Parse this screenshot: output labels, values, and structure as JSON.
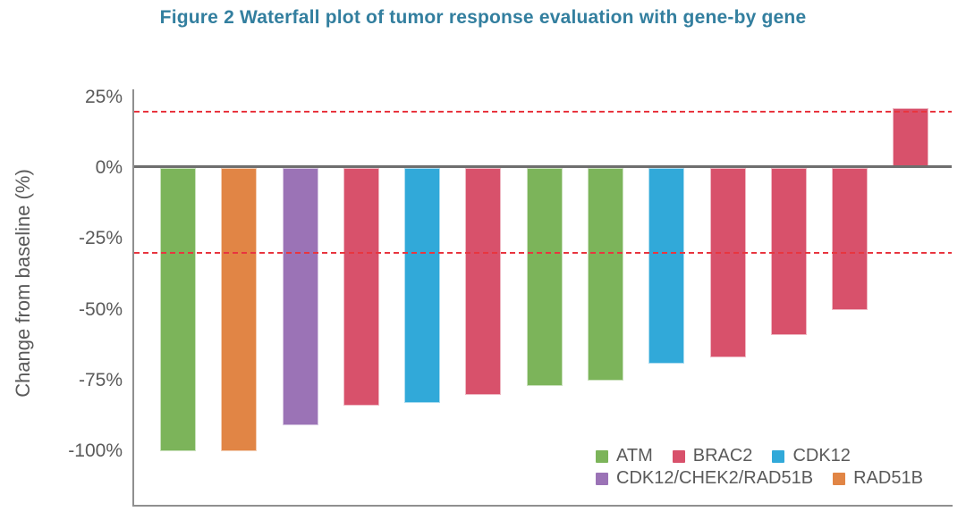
{
  "title": "Figure 2 Waterfall plot of tumor response evaluation with gene-by gene",
  "chart_data": {
    "type": "bar",
    "title": "Figure 2 Waterfall plot of tumor response evaluation with gene-by gene",
    "xlabel": "",
    "ylabel": "Change from baseline (%)",
    "ylim": [
      -119,
      28
    ],
    "grid": false,
    "yticks": [
      25,
      0,
      -25,
      -50,
      -75,
      -100
    ],
    "ytick_labels": [
      "25%",
      "0%",
      "-25%",
      "-50%",
      "-75%",
      "-100%"
    ],
    "bars": [
      {
        "gene": "ATM",
        "value": -100
      },
      {
        "gene": "RAD51B",
        "value": -100
      },
      {
        "gene": "CDK12/CHEK2/RAD51B",
        "value": -91
      },
      {
        "gene": "BRAC2",
        "value": -84
      },
      {
        "gene": "CDK12",
        "value": -83
      },
      {
        "gene": "BRAC2",
        "value": -80
      },
      {
        "gene": "ATM",
        "value": -77
      },
      {
        "gene": "ATM",
        "value": -75
      },
      {
        "gene": "CDK12",
        "value": -69
      },
      {
        "gene": "BRAC2",
        "value": -67
      },
      {
        "gene": "BRAC2",
        "value": -59
      },
      {
        "gene": "BRAC2",
        "value": -50
      },
      {
        "gene": "BRAC2",
        "value": 21
      }
    ],
    "reference_lines": {
      "values": [
        20,
        -30
      ],
      "style": "dashed",
      "color": "#e8353f"
    },
    "legend_rows": [
      [
        "ATM",
        "BRAC2",
        "CDK12"
      ],
      [
        "CDK12/CHEK2/RAD51B",
        "RAD51B"
      ]
    ],
    "legend_position": "inside-bottom-right",
    "colors": {
      "ATM": "#7cb45a",
      "BRAC2": "#d8516b",
      "CDK12": "#31a9d9",
      "CDK12/CHEK2/RAD51B": "#9b73b6",
      "RAD51B": "#e18545"
    },
    "title_color": "#337f9f",
    "text_color": "#5a5a5a",
    "axis_color": "#8f8f8f",
    "zero_line_color": "#6e6e6e"
  }
}
